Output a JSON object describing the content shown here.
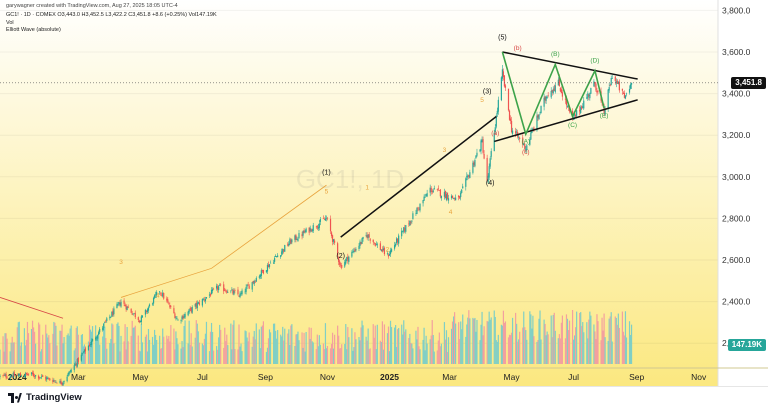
{
  "header": {
    "line1": "garywagner created with TradingView.com, Aug 27, 2025 18:05 UTC-4",
    "line2": "GC1! · 1D · COMEX   O3,443.0   H3,452.5   L3,422.2   C3,451.8   +8.6 (+0.25%)   Vol147.19K",
    "line3": "Vol",
    "line4": "Elliott Wave (absolute)"
  },
  "watermark": "GC1!, 1D",
  "price_tag": "3,451.8",
  "volume_tag": "147.19K",
  "brand": "TradingView",
  "colors": {
    "background_top": "#ffffff",
    "background_bottom": "#fbe880",
    "candle_up": "#26a69a",
    "candle_down": "#ef5350",
    "volume_up": "#80cfc5",
    "volume_down": "#f3a09f",
    "orange_wave": "#e8a33d",
    "green_wave": "#3da34a",
    "red_wave": "#d64545",
    "black_wave": "#111111",
    "price_tag_bg": "#111111",
    "volume_tag_bg": "#26a69a"
  },
  "chart_data": {
    "type": "candlestick",
    "title": "GC1!, 1D",
    "y_axis": {
      "ticks": [
        2200,
        2400,
        2600,
        2800,
        3000,
        3200,
        3400,
        3600,
        3800
      ],
      "range": [
        2100,
        3850
      ],
      "side": "right"
    },
    "x_axis": {
      "labels": [
        "2024",
        "Mar",
        "May",
        "Jul",
        "Sep",
        "Nov",
        "2025",
        "Mar",
        "May",
        "Jul",
        "Sep",
        "Nov"
      ],
      "range": [
        "2023-12-15",
        "2025-11-20"
      ]
    },
    "price_path": [
      [
        "2023-12-15",
        2040
      ],
      [
        "2024-01-15",
        2050
      ],
      [
        "2024-02-14",
        2010
      ],
      [
        "2024-03-10",
        2180
      ],
      [
        "2024-04-12",
        2400
      ],
      [
        "2024-05-01",
        2310
      ],
      [
        "2024-05-20",
        2455
      ],
      [
        "2024-06-07",
        2310
      ],
      [
        "2024-07-17",
        2470
      ],
      [
        "2024-08-07",
        2430
      ],
      [
        "2024-09-26",
        2690
      ],
      [
        "2024-10-31",
        2800
      ],
      [
        "2024-11-14",
        2570
      ],
      [
        "2024-12-10",
        2720
      ],
      [
        "2024-12-30",
        2620
      ],
      [
        "2025-02-10",
        2940
      ],
      [
        "2025-03-10",
        2890
      ],
      [
        "2025-04-02",
        3170
      ],
      [
        "2025-04-07",
        2970
      ],
      [
        "2025-04-22",
        3500
      ],
      [
        "2025-05-01",
        3230
      ],
      [
        "2025-05-15",
        3140
      ],
      [
        "2025-06-05",
        3400
      ],
      [
        "2025-06-16",
        3450
      ],
      [
        "2025-06-30",
        3270
      ],
      [
        "2025-07-22",
        3450
      ],
      [
        "2025-07-31",
        3310
      ],
      [
        "2025-08-08",
        3490
      ],
      [
        "2025-08-20",
        3380
      ],
      [
        "2025-08-27",
        3451.8
      ]
    ],
    "last_bar": {
      "date": "2025-08-27",
      "open": 3443.0,
      "high": 3452.5,
      "low": 3422.2,
      "close": 3451.8,
      "change": 8.6,
      "change_pct": 0.25,
      "volume": "147.19K"
    },
    "trendlines": [
      {
        "from": [
          "2024-11-14",
          2710
        ],
        "to": [
          "2025-04-16",
          3290
        ],
        "color": "black"
      },
      {
        "from": [
          "2025-04-22",
          3600
        ],
        "to": [
          "2025-09-02",
          3470
        ],
        "color": "black"
      },
      {
        "from": [
          "2025-04-14",
          3170
        ],
        "to": [
          "2025-09-02",
          3370
        ],
        "color": "black"
      },
      {
        "from": [
          "2023-12-15",
          2420
        ],
        "to": [
          "2024-02-15",
          2320
        ],
        "color": "red"
      }
    ],
    "wave_paths": [
      {
        "name": "orange-impulse",
        "color": "orange",
        "points": [
          [
            "2024-04-12",
            2420
          ],
          [
            "2024-07-10",
            2560
          ],
          [
            "2024-10-31",
            2960
          ]
        ]
      },
      {
        "name": "abcde-triangle",
        "color": "green",
        "points": [
          [
            "2025-04-22",
            3600
          ],
          [
            "2025-05-15",
            3205
          ],
          [
            "2025-06-13",
            3540
          ],
          [
            "2025-06-30",
            3290
          ],
          [
            "2025-07-22",
            3510
          ],
          [
            "2025-07-31",
            3330
          ]
        ]
      }
    ],
    "wave_labels": [
      {
        "text": "(1)",
        "date": "2024-10-31",
        "price": 3010,
        "color": "black"
      },
      {
        "text": "(2)",
        "date": "2024-11-14",
        "price": 2610,
        "color": "black"
      },
      {
        "text": "(3)",
        "date": "2025-04-07",
        "price": 3400,
        "color": "black"
      },
      {
        "text": "(4)",
        "date": "2025-04-10",
        "price": 2960,
        "color": "black"
      },
      {
        "text": "(5)",
        "date": "2025-04-22",
        "price": 3660,
        "color": "black"
      },
      {
        "text": "3",
        "date": "2024-04-12",
        "price": 2580,
        "color": "orange"
      },
      {
        "text": "4",
        "date": "2024-05-18",
        "price": 2420,
        "color": "orange"
      },
      {
        "text": "5",
        "date": "2024-10-31",
        "price": 2920,
        "color": "orange"
      },
      {
        "text": "1",
        "date": "2024-12-10",
        "price": 2940,
        "color": "orange"
      },
      {
        "text": "2",
        "date": "2024-12-30",
        "price": 2640,
        "color": "orange"
      },
      {
        "text": "3",
        "date": "2025-02-24",
        "price": 3120,
        "color": "orange"
      },
      {
        "text": "4",
        "date": "2025-03-02",
        "price": 2820,
        "color": "orange"
      },
      {
        "text": "5",
        "date": "2025-04-02",
        "price": 3360,
        "color": "orange"
      },
      {
        "text": "(a)",
        "date": "2025-04-15",
        "price": 3200,
        "color": "red"
      },
      {
        "text": "(b)",
        "date": "2025-05-07",
        "price": 3610,
        "color": "red"
      },
      {
        "text": "(c)",
        "date": "2025-05-15",
        "price": 3110,
        "color": "red"
      },
      {
        "text": "(A)",
        "date": "2025-05-15",
        "price": 3160,
        "color": "green"
      },
      {
        "text": "(B)",
        "date": "2025-06-13",
        "price": 3580,
        "color": "green"
      },
      {
        "text": "(C)",
        "date": "2025-06-30",
        "price": 3240,
        "color": "green"
      },
      {
        "text": "(D)",
        "date": "2025-07-22",
        "price": 3550,
        "color": "green"
      },
      {
        "text": "(E)",
        "date": "2025-07-31",
        "price": 3285,
        "color": "green"
      }
    ]
  }
}
